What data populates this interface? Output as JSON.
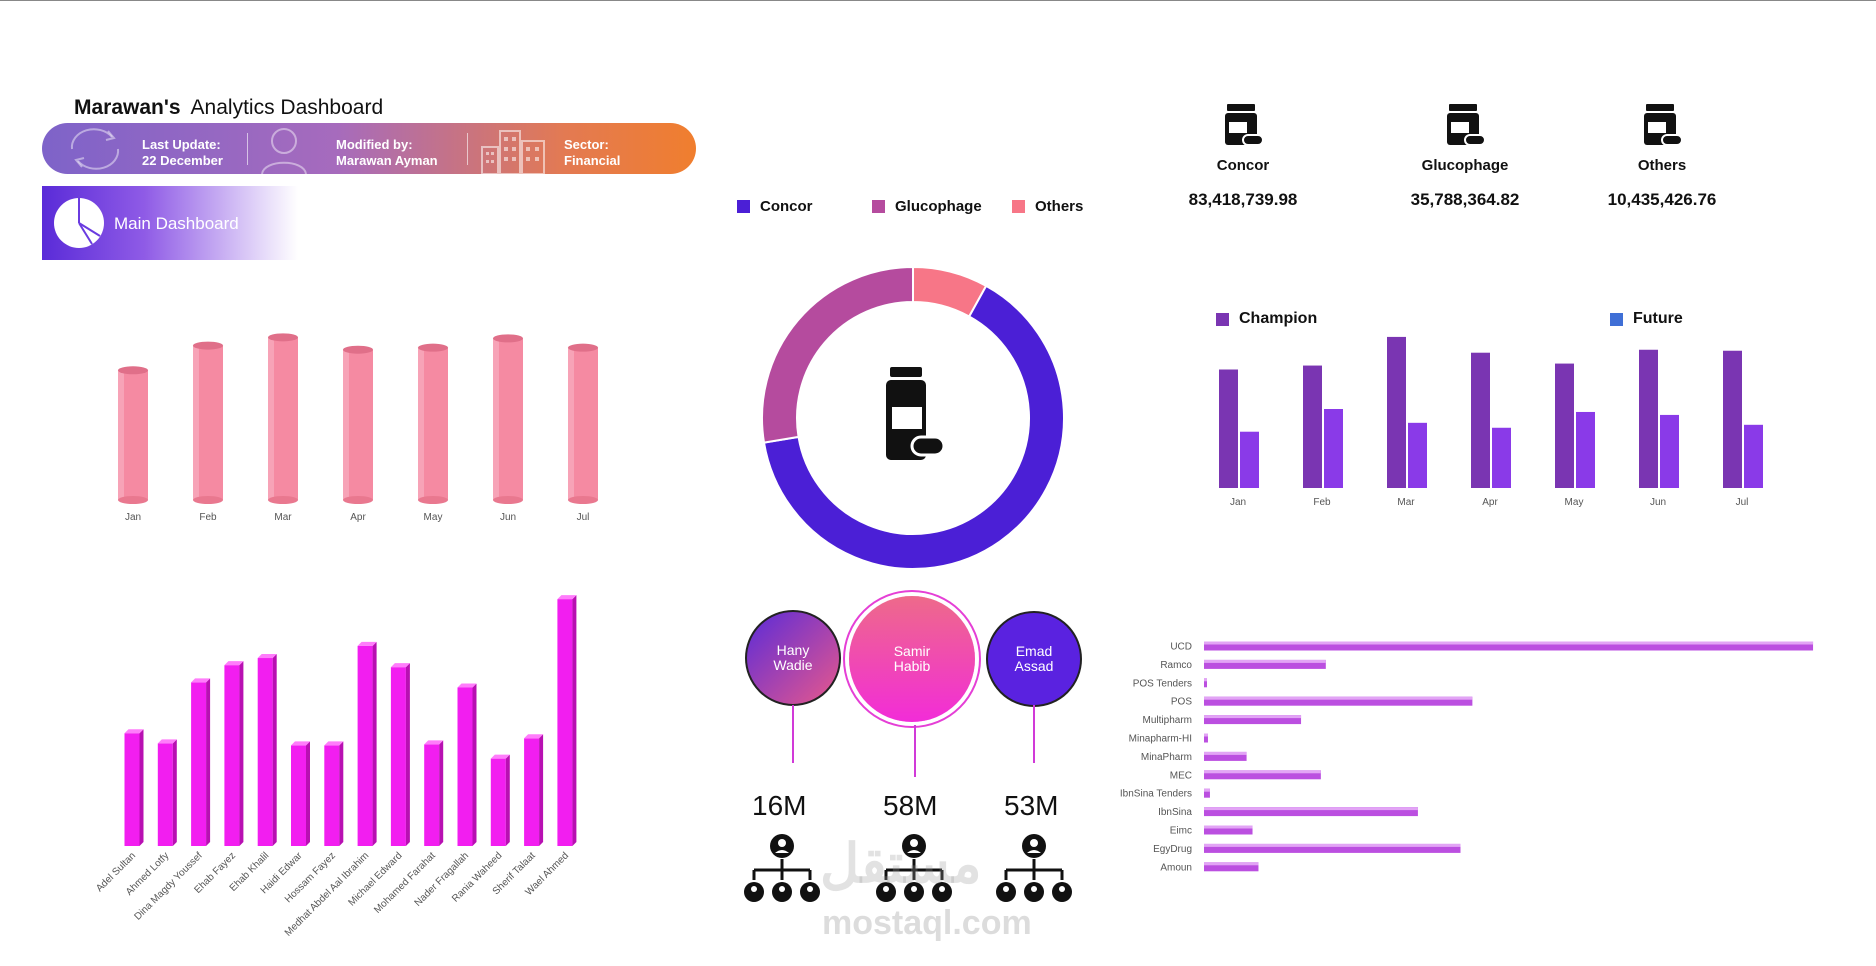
{
  "header": {
    "owner": "Marawan's",
    "title": "Analytics Dashboard",
    "last_update_label": "Last Update:",
    "last_update_value": "22 December",
    "modified_label": "Modified by:",
    "modified_value": "Marawan Ayman",
    "sector_label": "Sector:",
    "sector_value": "Financial"
  },
  "nav": {
    "main_dashboard": "Main Dashboard"
  },
  "kpis": [
    {
      "name": "Concor",
      "value": "83,418,739.98",
      "icon": "medicine-bottle-icon"
    },
    {
      "name": "Glucophage",
      "value": "35,788,364.82",
      "icon": "medicine-bottle-icon"
    },
    {
      "name": "Others",
      "value": "10,435,426.76",
      "icon": "medicine-bottle-icon"
    }
  ],
  "colors": {
    "concor": "#4b1fd6",
    "glucophage": "#b54b9e",
    "others": "#f77687",
    "champion": "#7a35b2",
    "future": "#8a3ae8",
    "pink_cyl": "#f58aa2",
    "magenta": "#f21ef0"
  },
  "personas": [
    {
      "name_line1": "Hany",
      "name_line2": "Wadie",
      "value": "16M",
      "icon": "org-chart-icon"
    },
    {
      "name_line1": "Samir",
      "name_line2": "Habib",
      "value": "58M",
      "icon": "org-chart-icon"
    },
    {
      "name_line1": "Emad",
      "name_line2": "Assad",
      "value": "53M",
      "icon": "org-chart-icon"
    }
  ],
  "chart_data": [
    {
      "type": "bar",
      "categories": [
        "Jan",
        "Feb",
        "Mar",
        "Apr",
        "May",
        "Jun",
        "Jul"
      ],
      "values": [
        126,
        150,
        158,
        146,
        148,
        157,
        148
      ],
      "ylim": [
        0,
        170
      ],
      "grid": false
    },
    {
      "type": "pie",
      "categories": [
        "Concor",
        "Glucophage",
        "Others"
      ],
      "values": [
        83418739.98,
        35788364.82,
        10435426.76
      ],
      "legend": "top"
    },
    {
      "type": "bar",
      "categories": [
        "Jan",
        "Feb",
        "Mar",
        "Apr",
        "May",
        "Jun",
        "Jul"
      ],
      "series": [
        {
          "name": "Champion",
          "values": [
            120,
            124,
            153,
            137,
            126,
            140,
            139
          ]
        },
        {
          "name": "Future",
          "values": [
            57,
            80,
            66,
            61,
            77,
            74,
            64
          ]
        }
      ],
      "ylim": [
        0,
        160
      ],
      "legend": "top",
      "grid": false
    },
    {
      "type": "bar",
      "categories": [
        "Adel Sultan",
        "Ahmed Lotfy",
        "Dina Magdy Youssef",
        "Ehab Fayez",
        "Ehab Khalil",
        "Haidi Edwar",
        "Hossam Fayez",
        "Medhat Abdel Aal Ibrahim",
        "Michael Edward",
        "Mohamed Farahat",
        "Nader Fragallah",
        "Rania Waheed",
        "Sherif Talaat",
        "Wael Ahmed"
      ],
      "values": [
        111,
        101,
        161,
        178,
        185,
        99,
        99,
        197,
        176,
        100,
        156,
        86,
        106,
        243
      ],
      "ylim": [
        0,
        250
      ],
      "grid": false
    },
    {
      "type": "bar",
      "orientation": "horizontal",
      "categories": [
        "UCD",
        "Ramco",
        "POS Tenders",
        "POS",
        "Multipharm",
        "Minapharm-HI",
        "MinaPharm",
        "MEC",
        "IbnSina Tenders",
        "IbnSina",
        "Eimc",
        "EgyDrug",
        "Amoun"
      ],
      "values": [
        615,
        123,
        2,
        271,
        98,
        4,
        43,
        118,
        6,
        216,
        49,
        259,
        55
      ],
      "xlim": [
        0,
        620
      ],
      "grid": false
    }
  ],
  "watermark": {
    "arabic": "مستقل",
    "latin": "mostaql.com"
  }
}
